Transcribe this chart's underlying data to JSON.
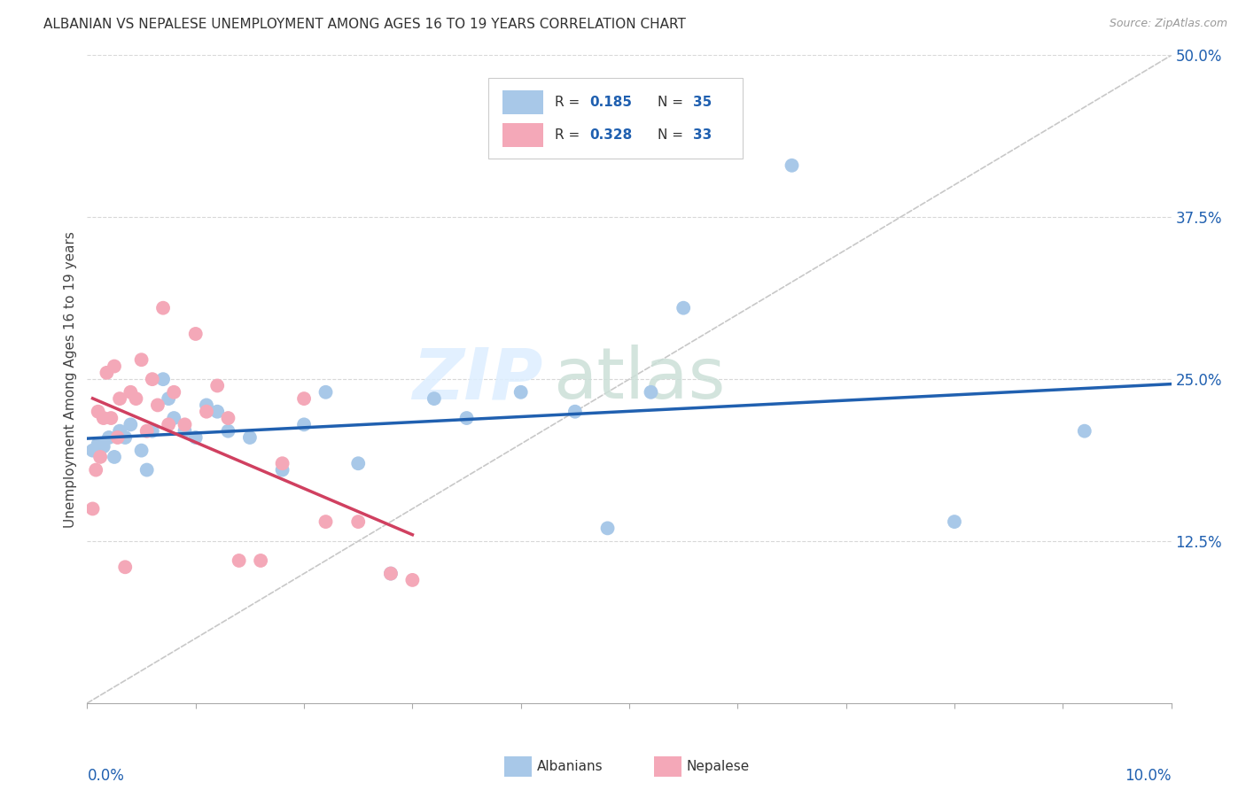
{
  "title": "ALBANIAN VS NEPALESE UNEMPLOYMENT AMONG AGES 16 TO 19 YEARS CORRELATION CHART",
  "source": "Source: ZipAtlas.com",
  "ylabel": "Unemployment Among Ages 16 to 19 years",
  "xlim": [
    0.0,
    10.0
  ],
  "ylim": [
    0.0,
    50.0
  ],
  "yticks_right": [
    12.5,
    25.0,
    37.5,
    50.0
  ],
  "ytick_labels_right": [
    "12.5%",
    "25.0%",
    "37.5%",
    "50.0%"
  ],
  "albanian_color": "#a8c8e8",
  "nepalese_color": "#f4a8b8",
  "albanian_line_color": "#2060b0",
  "nepalese_line_color": "#d04060",
  "diagonal_color": "#c8c8c8",
  "albanian_x": [
    0.05,
    0.1,
    0.15,
    0.2,
    0.25,
    0.3,
    0.35,
    0.4,
    0.5,
    0.55,
    0.6,
    0.7,
    0.75,
    0.8,
    0.9,
    1.0,
    1.1,
    1.2,
    1.3,
    1.5,
    1.8,
    2.0,
    2.2,
    2.5,
    2.8,
    3.2,
    3.5,
    4.0,
    4.5,
    4.8,
    5.2,
    5.5,
    6.5,
    8.0,
    9.2
  ],
  "albanian_y": [
    19.5,
    20.0,
    19.8,
    20.5,
    19.0,
    21.0,
    20.5,
    21.5,
    19.5,
    18.0,
    21.0,
    25.0,
    23.5,
    22.0,
    21.0,
    20.5,
    23.0,
    22.5,
    21.0,
    20.5,
    18.0,
    21.5,
    24.0,
    18.5,
    10.0,
    23.5,
    22.0,
    24.0,
    22.5,
    13.5,
    24.0,
    30.5,
    41.5,
    14.0,
    21.0
  ],
  "nepalese_x": [
    0.05,
    0.08,
    0.1,
    0.12,
    0.15,
    0.18,
    0.22,
    0.25,
    0.28,
    0.3,
    0.35,
    0.4,
    0.45,
    0.5,
    0.55,
    0.6,
    0.65,
    0.7,
    0.75,
    0.8,
    0.9,
    1.0,
    1.1,
    1.2,
    1.3,
    1.4,
    1.6,
    1.8,
    2.0,
    2.2,
    2.5,
    2.8,
    3.0
  ],
  "nepalese_y": [
    15.0,
    18.0,
    22.5,
    19.0,
    22.0,
    25.5,
    22.0,
    26.0,
    20.5,
    23.5,
    10.5,
    24.0,
    23.5,
    26.5,
    21.0,
    25.0,
    23.0,
    30.5,
    21.5,
    24.0,
    21.5,
    28.5,
    22.5,
    24.5,
    22.0,
    11.0,
    11.0,
    18.5,
    23.5,
    14.0,
    14.0,
    10.0,
    9.5
  ],
  "watermark_zip": "ZIP",
  "watermark_atlas": "atlas",
  "background_color": "#ffffff",
  "grid_color": "#d8d8d8",
  "legend_r_color": "#333333",
  "legend_n_color": "#333333",
  "legend_val_color": "#2060b0"
}
